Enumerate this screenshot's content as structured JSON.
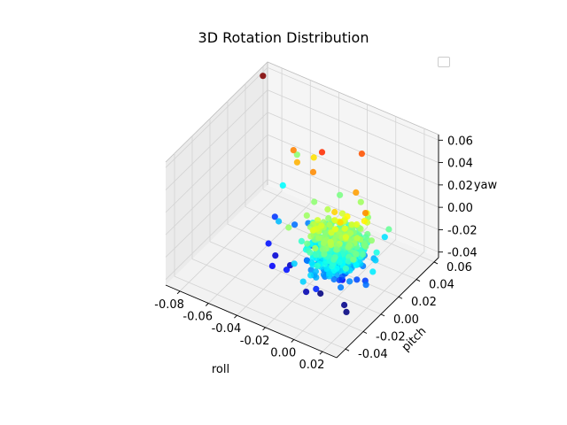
{
  "chart_data": {
    "type": "scatter",
    "projection": "3d",
    "title": "3D Rotation Distribution",
    "xlabel": "roll",
    "ylabel": "pitch",
    "zlabel": "yaw",
    "xlim": [
      -0.09,
      0.03
    ],
    "ylim": [
      -0.05,
      0.065
    ],
    "zlim": [
      -0.045,
      0.065
    ],
    "xticks": [
      "-0.08",
      "-0.06",
      "-0.04",
      "-0.02",
      "0.00",
      "0.02"
    ],
    "yticks": [
      "-0.04",
      "-0.02",
      "0.00",
      "0.02",
      "0.04",
      "0.06"
    ],
    "zticks": [
      "-0.04",
      "-0.02",
      "0.00",
      "0.02",
      "0.04",
      "0.06"
    ],
    "grid": true,
    "legend": {
      "position": "top-right",
      "entries": []
    },
    "colormap": "jet",
    "color_by": "yaw",
    "cluster": {
      "roll_center": 0.0,
      "pitch_center": 0.0,
      "yaw_center": -0.002,
      "roll_std": 0.008,
      "pitch_std": 0.008,
      "yaw_std": 0.009,
      "count": 700
    },
    "points": [
      {
        "x": -0.087,
        "y": 0.055,
        "z": 0.062
      },
      {
        "x": -0.03,
        "y": 0.03,
        "z": 0.044
      },
      {
        "x": -0.012,
        "y": 0.046,
        "z": 0.04
      },
      {
        "x": -0.03,
        "y": 0.02,
        "z": 0.034
      },
      {
        "x": 0.0,
        "y": 0.02,
        "z": 0.032
      },
      {
        "x": 0.004,
        "y": -0.004,
        "z": 0.026
      },
      {
        "x": 0.016,
        "y": 0.005,
        "z": 0.034
      },
      {
        "x": -0.05,
        "y": 0.03,
        "z": 0.035
      },
      {
        "x": -0.045,
        "y": 0.026,
        "z": 0.03
      },
      {
        "x": -0.042,
        "y": 0.04,
        "z": 0.025
      },
      {
        "x": -0.06,
        "y": 0.05,
        "z": 0.01
      },
      {
        "x": -0.06,
        "y": 0.034,
        "z": -0.005
      },
      {
        "x": -0.06,
        "y": 0.025,
        "z": -0.026
      },
      {
        "x": -0.052,
        "y": 0.005,
        "z": -0.03
      },
      {
        "x": -0.046,
        "y": 0.003,
        "z": -0.036
      },
      {
        "x": -0.04,
        "y": -0.01,
        "z": -0.032
      },
      {
        "x": -0.035,
        "y": 0.002,
        "z": -0.038
      },
      {
        "x": -0.03,
        "y": -0.01,
        "z": -0.03
      },
      {
        "x": -0.022,
        "y": 0.0,
        "z": -0.025
      },
      {
        "x": -0.015,
        "y": -0.012,
        "z": -0.04
      },
      {
        "x": -0.01,
        "y": -0.004,
        "z": -0.045
      },
      {
        "x": -0.025,
        "y": 0.011,
        "z": -0.022
      },
      {
        "x": 0.008,
        "y": -0.006,
        "z": -0.044
      },
      {
        "x": 0.012,
        "y": -0.01,
        "z": -0.045
      },
      {
        "x": 0.014,
        "y": 0.03,
        "z": -0.008
      },
      {
        "x": 0.02,
        "y": 0.01,
        "z": -0.01
      },
      {
        "x": 0.022,
        "y": -0.004,
        "z": -0.02
      },
      {
        "x": 0.006,
        "y": 0.024,
        "z": 0.01
      },
      {
        "x": -0.004,
        "y": 0.032,
        "z": 0.012
      },
      {
        "x": 0.009,
        "y": 0.018,
        "z": 0.02
      },
      {
        "x": -0.036,
        "y": 0.024,
        "z": -0.018
      },
      {
        "x": -0.043,
        "y": 0.02,
        "z": -0.02
      },
      {
        "x": -0.048,
        "y": 0.01,
        "z": -0.012
      },
      {
        "x": -0.028,
        "y": 0.018,
        "z": 0.01
      },
      {
        "x": -0.02,
        "y": 0.034,
        "z": 0.008
      },
      {
        "x": 0.02,
        "y": 0.025,
        "z": 0.006
      }
    ]
  }
}
